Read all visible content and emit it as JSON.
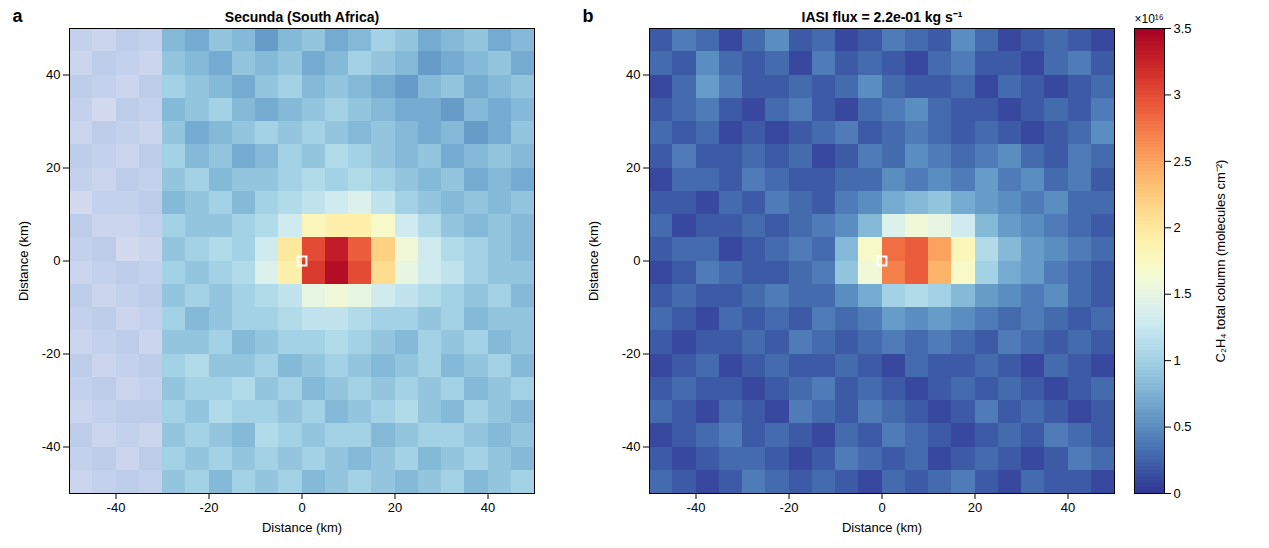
{
  "chart_data": [
    {
      "type": "heatmap",
      "panel": "a",
      "title": "Secunda (South Africa)",
      "x_label": "Distance (km)",
      "y_label": "Distance (km)",
      "xlim": [
        -50,
        50
      ],
      "ylim": [
        -50,
        50
      ],
      "xticks": [
        -40,
        -20,
        0,
        20,
        40
      ],
      "yticks": [
        -40,
        -20,
        0,
        20,
        40
      ],
      "color": "RdYlBu",
      "source": {
        "x": 0,
        "y": 0
      },
      "shaded_xlim": [
        -50,
        -30
      ],
      "cells": {
        "x": [
          -47.5,
          -42.5,
          -37.5,
          -32.5,
          -27.5,
          -22.5,
          -17.5,
          -12.5,
          -7.5,
          -2.5,
          2.5,
          7.5,
          12.5,
          17.5,
          22.5,
          27.5,
          32.5,
          37.5,
          42.5,
          47.5
        ],
        "y": [
          47.5,
          42.5,
          37.5,
          32.5,
          27.5,
          22.5,
          17.5,
          12.5,
          7.5,
          2.5,
          -2.5,
          -7.5,
          -12.5,
          -17.5,
          -22.5,
          -27.5,
          -32.5,
          -37.5,
          -42.5,
          -47.5
        ],
        "values": [
          [
            1.1,
            1.2,
            1.0,
            1.1,
            0.8,
            0.7,
            0.9,
            0.8,
            0.6,
            0.8,
            0.9,
            0.7,
            0.8,
            1.0,
            0.9,
            0.7,
            0.8,
            0.9,
            0.7,
            0.8
          ],
          [
            1.2,
            1.0,
            1.1,
            1.2,
            0.9,
            0.8,
            0.7,
            0.9,
            0.8,
            0.9,
            0.7,
            0.8,
            1.0,
            0.9,
            0.8,
            0.6,
            0.7,
            0.8,
            0.9,
            0.7
          ],
          [
            1.0,
            1.1,
            1.2,
            1.0,
            1.0,
            0.9,
            0.8,
            0.7,
            0.9,
            1.0,
            0.8,
            0.9,
            0.8,
            0.7,
            0.6,
            0.8,
            0.9,
            0.7,
            0.8,
            0.9
          ],
          [
            1.1,
            1.3,
            1.0,
            1.1,
            0.8,
            0.9,
            1.0,
            0.8,
            0.7,
            0.8,
            0.9,
            1.0,
            0.9,
            0.8,
            0.7,
            0.7,
            0.6,
            0.8,
            0.7,
            0.8
          ],
          [
            1.2,
            1.0,
            1.1,
            1.2,
            0.9,
            0.7,
            0.8,
            0.9,
            1.0,
            0.9,
            1.0,
            0.9,
            0.8,
            0.9,
            0.8,
            0.7,
            0.8,
            0.6,
            0.7,
            0.9
          ],
          [
            1.0,
            1.1,
            1.2,
            1.0,
            1.0,
            0.8,
            0.9,
            0.7,
            0.8,
            1.0,
            0.9,
            1.1,
            1.0,
            0.9,
            0.8,
            0.9,
            0.7,
            0.8,
            0.9,
            0.8
          ],
          [
            1.1,
            1.2,
            1.0,
            1.1,
            0.9,
            1.0,
            0.8,
            0.9,
            0.9,
            1.0,
            1.1,
            1.0,
            1.1,
            1.0,
            0.9,
            0.8,
            0.9,
            0.7,
            0.8,
            0.7
          ],
          [
            1.3,
            1.1,
            1.1,
            1.0,
            0.8,
            0.9,
            1.0,
            0.8,
            1.0,
            1.1,
            1.2,
            1.3,
            1.4,
            1.2,
            1.0,
            0.9,
            0.8,
            0.9,
            0.8,
            0.9
          ],
          [
            1.0,
            1.2,
            1.2,
            1.1,
            1.0,
            0.9,
            0.9,
            1.0,
            1.1,
            1.3,
            1.8,
            1.9,
            1.9,
            1.7,
            1.3,
            1.1,
            0.9,
            0.8,
            0.9,
            0.8
          ],
          [
            1.1,
            1.0,
            1.3,
            1.2,
            0.9,
            1.0,
            1.1,
            1.0,
            1.3,
            2.0,
            3.0,
            3.3,
            2.9,
            2.2,
            1.6,
            1.3,
            1.1,
            1.0,
            0.9,
            0.8
          ],
          [
            1.2,
            1.1,
            1.0,
            1.1,
            1.0,
            0.9,
            1.0,
            1.1,
            1.4,
            1.9,
            3.1,
            3.4,
            3.0,
            2.1,
            1.5,
            1.3,
            1.2,
            1.0,
            0.9,
            0.9
          ],
          [
            1.0,
            1.2,
            1.1,
            1.0,
            0.9,
            1.0,
            0.9,
            1.0,
            1.1,
            1.2,
            1.5,
            1.6,
            1.5,
            1.3,
            1.2,
            1.1,
            1.0,
            0.9,
            1.0,
            0.8
          ],
          [
            1.1,
            1.0,
            1.2,
            1.1,
            1.0,
            0.8,
            0.9,
            1.0,
            1.0,
            1.1,
            1.2,
            1.2,
            1.1,
            1.0,
            1.0,
            0.9,
            1.0,
            0.8,
            0.9,
            0.9
          ],
          [
            1.2,
            1.1,
            1.0,
            1.2,
            0.9,
            0.9,
            1.0,
            0.8,
            0.9,
            1.0,
            1.0,
            1.1,
            1.0,
            0.9,
            0.8,
            1.0,
            0.9,
            1.0,
            0.8,
            0.9
          ],
          [
            1.0,
            1.2,
            1.1,
            1.0,
            1.0,
            1.1,
            0.9,
            0.9,
            1.0,
            0.8,
            0.9,
            1.0,
            0.9,
            0.8,
            0.9,
            1.0,
            0.8,
            0.9,
            1.0,
            0.8
          ],
          [
            1.1,
            1.0,
            1.2,
            1.1,
            0.9,
            1.0,
            1.0,
            1.1,
            0.9,
            1.0,
            0.8,
            0.9,
            1.0,
            0.9,
            1.0,
            0.9,
            1.0,
            0.8,
            0.9,
            1.0
          ],
          [
            1.2,
            1.1,
            1.0,
            1.0,
            1.0,
            0.9,
            1.1,
            1.0,
            1.0,
            0.9,
            1.0,
            0.8,
            0.9,
            1.0,
            1.1,
            0.9,
            0.8,
            1.0,
            0.9,
            0.8
          ],
          [
            1.0,
            1.2,
            1.1,
            1.2,
            0.9,
            1.0,
            0.9,
            0.8,
            1.1,
            1.0,
            0.9,
            1.0,
            1.0,
            0.8,
            0.9,
            1.0,
            1.0,
            0.9,
            0.8,
            0.9
          ],
          [
            1.1,
            1.0,
            1.2,
            1.0,
            1.0,
            0.9,
            1.0,
            0.9,
            1.0,
            0.9,
            1.0,
            0.9,
            0.8,
            0.9,
            1.0,
            0.8,
            0.9,
            1.0,
            0.9,
            0.8
          ],
          [
            1.2,
            1.1,
            1.0,
            1.1,
            0.9,
            1.0,
            0.8,
            1.0,
            0.9,
            1.0,
            0.8,
            0.9,
            1.0,
            0.9,
            0.8,
            0.9,
            1.0,
            0.8,
            0.9,
            1.0
          ]
        ]
      }
    },
    {
      "type": "heatmap",
      "panel": "b",
      "title": "IASI flux = 2.2e-01 kg s⁻¹",
      "x_label": "Distance (km)",
      "y_label": "Distance (km)",
      "xlim": [
        -50,
        50
      ],
      "ylim": [
        -50,
        50
      ],
      "xticks": [
        -40,
        -20,
        0,
        20,
        40
      ],
      "yticks": [
        -40,
        -20,
        0,
        20,
        40
      ],
      "color": "RdYlBu",
      "source": {
        "x": 0,
        "y": 0
      },
      "cells": {
        "x": [
          -47.5,
          -42.5,
          -37.5,
          -32.5,
          -27.5,
          -22.5,
          -17.5,
          -12.5,
          -7.5,
          -2.5,
          2.5,
          7.5,
          12.5,
          17.5,
          22.5,
          27.5,
          32.5,
          37.5,
          42.5,
          47.5
        ],
        "y": [
          47.5,
          42.5,
          37.5,
          32.5,
          27.5,
          22.5,
          17.5,
          12.5,
          7.5,
          2.5,
          -2.5,
          -7.5,
          -12.5,
          -17.5,
          -22.5,
          -27.5,
          -32.5,
          -37.5,
          -42.5,
          -47.5
        ],
        "values": [
          [
            0.2,
            0.4,
            0.3,
            0.1,
            0.3,
            0.5,
            0.2,
            0.3,
            0.1,
            0.2,
            0.4,
            0.3,
            0.2,
            0.5,
            0.3,
            0.1,
            0.2,
            0.3,
            0.2,
            0.1
          ],
          [
            0.3,
            0.2,
            0.5,
            0.3,
            0.2,
            0.3,
            0.1,
            0.4,
            0.2,
            0.3,
            0.2,
            0.1,
            0.3,
            0.4,
            0.2,
            0.2,
            0.1,
            0.3,
            0.4,
            0.2
          ],
          [
            0.1,
            0.3,
            0.6,
            0.4,
            0.2,
            0.2,
            0.3,
            0.2,
            0.3,
            0.5,
            0.3,
            0.2,
            0.2,
            0.3,
            0.1,
            0.3,
            0.2,
            0.1,
            0.2,
            0.3
          ],
          [
            0.2,
            0.3,
            0.4,
            0.2,
            0.1,
            0.3,
            0.4,
            0.2,
            0.1,
            0.3,
            0.4,
            0.5,
            0.3,
            0.2,
            0.2,
            0.1,
            0.2,
            0.3,
            0.2,
            0.4
          ],
          [
            0.3,
            0.2,
            0.3,
            0.1,
            0.2,
            0.1,
            0.2,
            0.3,
            0.4,
            0.2,
            0.3,
            0.4,
            0.3,
            0.2,
            0.3,
            0.2,
            0.1,
            0.2,
            0.3,
            0.5
          ],
          [
            0.2,
            0.4,
            0.2,
            0.2,
            0.3,
            0.2,
            0.3,
            0.1,
            0.2,
            0.4,
            0.3,
            0.5,
            0.4,
            0.3,
            0.4,
            0.5,
            0.3,
            0.2,
            0.4,
            0.3
          ],
          [
            0.1,
            0.3,
            0.3,
            0.2,
            0.4,
            0.3,
            0.2,
            0.2,
            0.3,
            0.3,
            0.5,
            0.4,
            0.5,
            0.4,
            0.6,
            0.4,
            0.5,
            0.3,
            0.4,
            0.2
          ],
          [
            0.2,
            0.2,
            0.1,
            0.3,
            0.2,
            0.4,
            0.3,
            0.2,
            0.4,
            0.5,
            0.7,
            0.8,
            0.9,
            0.7,
            0.6,
            0.5,
            0.4,
            0.5,
            0.3,
            0.3
          ],
          [
            0.3,
            0.1,
            0.2,
            0.2,
            0.3,
            0.2,
            0.3,
            0.4,
            0.5,
            0.8,
            1.4,
            1.6,
            1.5,
            1.3,
            0.8,
            0.6,
            0.5,
            0.4,
            0.3,
            0.2
          ],
          [
            0.2,
            0.3,
            0.3,
            0.1,
            0.2,
            0.3,
            0.4,
            0.3,
            0.8,
            1.7,
            2.8,
            2.9,
            2.5,
            1.8,
            1.1,
            0.8,
            0.6,
            0.5,
            0.4,
            0.3
          ],
          [
            0.1,
            0.2,
            0.4,
            0.3,
            0.2,
            0.2,
            0.3,
            0.4,
            0.9,
            1.6,
            2.7,
            2.9,
            2.4,
            1.7,
            1.0,
            0.7,
            0.6,
            0.4,
            0.3,
            0.2
          ],
          [
            0.2,
            0.3,
            0.2,
            0.2,
            0.3,
            0.4,
            0.3,
            0.3,
            0.5,
            0.7,
            1.0,
            1.1,
            1.0,
            0.8,
            0.6,
            0.5,
            0.4,
            0.5,
            0.3,
            0.2
          ],
          [
            0.3,
            0.2,
            0.1,
            0.3,
            0.2,
            0.3,
            0.2,
            0.4,
            0.3,
            0.4,
            0.6,
            0.5,
            0.6,
            0.5,
            0.4,
            0.3,
            0.4,
            0.3,
            0.2,
            0.3
          ],
          [
            0.2,
            0.1,
            0.2,
            0.2,
            0.3,
            0.2,
            0.4,
            0.3,
            0.2,
            0.3,
            0.4,
            0.3,
            0.4,
            0.3,
            0.2,
            0.4,
            0.3,
            0.2,
            0.3,
            0.2
          ],
          [
            0.1,
            0.2,
            0.3,
            0.1,
            0.2,
            0.3,
            0.2,
            0.2,
            0.3,
            0.2,
            0.1,
            0.3,
            0.2,
            0.2,
            0.3,
            0.2,
            0.1,
            0.3,
            0.2,
            0.1
          ],
          [
            0.2,
            0.3,
            0.2,
            0.2,
            0.1,
            0.2,
            0.3,
            0.4,
            0.2,
            0.3,
            0.2,
            0.1,
            0.2,
            0.3,
            0.2,
            0.3,
            0.2,
            0.1,
            0.2,
            0.3
          ],
          [
            0.3,
            0.2,
            0.1,
            0.3,
            0.2,
            0.1,
            0.4,
            0.3,
            0.2,
            0.4,
            0.3,
            0.2,
            0.1,
            0.2,
            0.4,
            0.2,
            0.3,
            0.2,
            0.1,
            0.2
          ],
          [
            0.1,
            0.2,
            0.3,
            0.4,
            0.2,
            0.3,
            0.2,
            0.1,
            0.3,
            0.2,
            0.4,
            0.3,
            0.2,
            0.1,
            0.2,
            0.3,
            0.2,
            0.4,
            0.3,
            0.2
          ],
          [
            0.2,
            0.1,
            0.2,
            0.3,
            0.3,
            0.2,
            0.1,
            0.2,
            0.4,
            0.3,
            0.2,
            0.3,
            0.1,
            0.2,
            0.3,
            0.2,
            0.1,
            0.2,
            0.4,
            0.3
          ],
          [
            0.3,
            0.2,
            0.1,
            0.2,
            0.4,
            0.3,
            0.2,
            0.3,
            0.2,
            0.1,
            0.3,
            0.2,
            0.3,
            0.4,
            0.2,
            0.1,
            0.3,
            0.2,
            0.2,
            0.1
          ]
        ]
      },
      "colorbar": {
        "label": "C₂H₄ total column (molecules cm⁻²)",
        "multiplier": "×10¹⁶",
        "lim": [
          0,
          3.5
        ],
        "ticks": [
          0,
          0.5,
          1,
          1.5,
          2,
          2.5,
          3,
          3.5
        ]
      }
    }
  ]
}
